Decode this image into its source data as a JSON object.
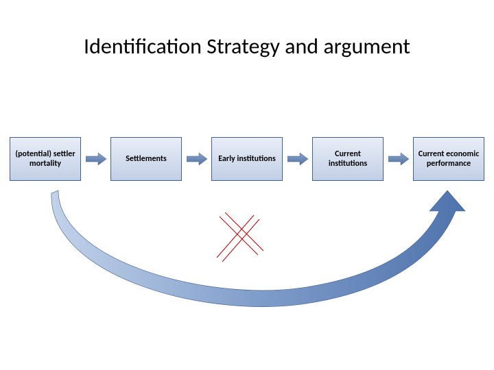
{
  "title": "Identification Strategy and argument",
  "title_fontsize": 32,
  "title_color": "#000000",
  "background_color": "#ffffff",
  "diagram": {
    "type": "flowchart",
    "boxes": [
      {
        "label": "(potential) settler mortality"
      },
      {
        "label": "Settlements"
      },
      {
        "label": "Early institutions"
      },
      {
        "label": "Current institutions"
      },
      {
        "label": "Current economic performance"
      }
    ],
    "box_style": {
      "fill_top": "#e9eef7",
      "fill_bottom": "#c1cfe6",
      "border_color": "#425f8f",
      "font_size": 12,
      "font_weight": 700,
      "text_color": "#000000",
      "width": 104,
      "height": 64
    },
    "small_arrow": {
      "fill": "#5a7bb4",
      "stroke": "#3a5a8a",
      "width": 30,
      "height": 18
    },
    "big_curve_arrow": {
      "fill_light": "#a7bddf",
      "fill_dark": "#4f73ad",
      "stroke": "#3a5a8a"
    },
    "cross_lines": {
      "stroke": "#c00000",
      "count": 4,
      "stroke_width": 1
    }
  }
}
